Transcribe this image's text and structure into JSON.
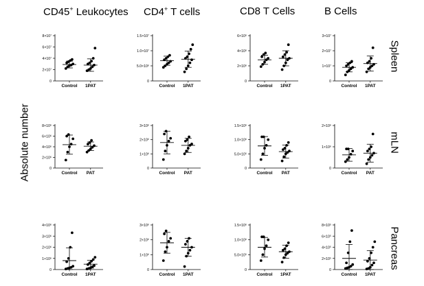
{
  "column_titles": [
    {
      "main": "CD45",
      "sup": "+",
      "rest": " Leukocytes"
    },
    {
      "main": "CD4",
      "sup": "+",
      "rest": " T cells"
    },
    {
      "main": "CD8 T Cells",
      "sup": "",
      "rest": ""
    },
    {
      "main": "B Cells",
      "sup": "",
      "rest": ""
    }
  ],
  "y_axis_label": "Absolute number",
  "row_labels": [
    "Spleen",
    "mLN",
    "Pancreas"
  ],
  "chart_data": [
    {
      "type": "scatter",
      "row": "Spleen",
      "column": "CD45+ Leukocytes",
      "categories": [
        "Control",
        "1PAT"
      ],
      "y_ticks": [
        "0",
        "2×10⁷",
        "4×10⁷",
        "6×10⁷",
        "8×10⁷"
      ],
      "ylim": [
        0,
        80000000
      ],
      "series": [
        {
          "name": "Control",
          "values": [
            22000000,
            25000000,
            27000000,
            28000000,
            30000000,
            32000000,
            34000000,
            36000000,
            38000000
          ],
          "mean": 29000000,
          "sd": 6000000
        },
        {
          "name": "1PAT",
          "values": [
            18000000,
            20000000,
            22000000,
            25000000,
            28000000,
            30000000,
            32000000,
            35000000,
            40000000,
            58000000
          ],
          "mean": 28000000,
          "sd": 11000000
        }
      ]
    },
    {
      "type": "scatter",
      "row": "Spleen",
      "column": "CD4+ T cells",
      "categories": [
        "Control",
        "1PAT"
      ],
      "y_ticks": [
        "0",
        "5.0×10⁶",
        "1.0×10⁷",
        "1.5×10⁷"
      ],
      "ylim": [
        0,
        15000000
      ],
      "series": [
        {
          "name": "Control",
          "values": [
            4500000,
            5000000,
            5500000,
            6000000,
            6500000,
            7000000,
            7500000,
            8000000,
            8500000
          ],
          "mean": 6700000,
          "sd": 1500000
        },
        {
          "name": "1PAT",
          "values": [
            3000000,
            4000000,
            5000000,
            6000000,
            7000000,
            7500000,
            8000000,
            9000000,
            10500000,
            12000000
          ],
          "mean": 7200000,
          "sd": 2700000
        }
      ]
    },
    {
      "type": "scatter",
      "row": "Spleen",
      "column": "CD8 T Cells",
      "categories": [
        "Control",
        "1PAT"
      ],
      "y_ticks": [
        "0",
        "2×10⁶",
        "4×10⁶",
        "6×10⁶"
      ],
      "ylim": [
        0,
        6000000
      ],
      "series": [
        {
          "name": "Control",
          "values": [
            1900000,
            2200000,
            2500000,
            2800000,
            3000000,
            3200000,
            3500000,
            3700000
          ],
          "mean": 2800000,
          "sd": 600000
        },
        {
          "name": "1PAT",
          "values": [
            1500000,
            2000000,
            2400000,
            2800000,
            3000000,
            3200000,
            3500000,
            3800000,
            4800000
          ],
          "mean": 3000000,
          "sd": 1000000
        }
      ]
    },
    {
      "type": "scatter",
      "row": "Spleen",
      "column": "B Cells",
      "categories": [
        "Control",
        "1PAT"
      ],
      "y_ticks": [
        "0",
        "1×10⁷",
        "2×10⁷",
        "3×10⁷"
      ],
      "ylim": [
        0,
        30000000
      ],
      "series": [
        {
          "name": "Control",
          "values": [
            4000000,
            6000000,
            7000000,
            8000000,
            9000000,
            10000000,
            11000000,
            12000000,
            13000000
          ],
          "mean": 9000000,
          "sd": 3000000
        },
        {
          "name": "1PAT",
          "values": [
            6000000,
            8000000,
            9000000,
            10000000,
            11000000,
            12000000,
            13000000,
            15000000,
            22000000
          ],
          "mean": 11500000,
          "sd": 5000000
        }
      ]
    },
    {
      "type": "scatter",
      "row": "mLN",
      "column": "CD45+ Leukocytes",
      "categories": [
        "Control",
        "PAT"
      ],
      "y_ticks": [
        "0",
        "2×10⁶",
        "4×10⁶",
        "6×10⁶",
        "8×10⁶"
      ],
      "ylim": [
        0,
        8000000
      ],
      "series": [
        {
          "name": "Control",
          "values": [
            1500000,
            3000000,
            4000000,
            4500000,
            5500000,
            6000000,
            6300000
          ],
          "mean": 4400000,
          "sd": 1800000
        },
        {
          "name": "PAT",
          "values": [
            3000000,
            3300000,
            3600000,
            3900000,
            4200000,
            4500000,
            4800000,
            5200000
          ],
          "mean": 4100000,
          "sd": 800000
        }
      ]
    },
    {
      "type": "scatter",
      "row": "mLN",
      "column": "CD4+ T cells",
      "categories": [
        "Control",
        "PAT"
      ],
      "y_ticks": [
        "0",
        "1×10⁶",
        "2×10⁶",
        "3×10⁶"
      ],
      "ylim": [
        0,
        3000000
      ],
      "series": [
        {
          "name": "Control",
          "values": [
            600000,
            1200000,
            1600000,
            1900000,
            2100000,
            2400000,
            2600000
          ],
          "mean": 1800000,
          "sd": 800000
        },
        {
          "name": "PAT",
          "values": [
            1000000,
            1200000,
            1400000,
            1600000,
            1700000,
            1900000,
            2000000,
            2200000
          ],
          "mean": 1600000,
          "sd": 500000
        }
      ]
    },
    {
      "type": "scatter",
      "row": "mLN",
      "column": "CD8 T Cells",
      "categories": [
        "Control",
        "PAT"
      ],
      "y_ticks": [
        "0",
        "5.0×10⁵",
        "1.0×10⁶",
        "1.5×10⁶"
      ],
      "ylim": [
        0,
        1500000
      ],
      "series": [
        {
          "name": "Control",
          "values": [
            300000,
            500000,
            700000,
            800000,
            1000000,
            1100000,
            1100000
          ],
          "mean": 780000,
          "sd": 330000
        },
        {
          "name": "PAT",
          "values": [
            250000,
            400000,
            500000,
            550000,
            600000,
            650000,
            700000,
            800000,
            900000
          ],
          "mean": 580000,
          "sd": 230000
        }
      ]
    },
    {
      "type": "scatter",
      "row": "mLN",
      "column": "B Cells",
      "categories": [
        "Control",
        "PAT"
      ],
      "y_ticks": [
        "0",
        "1×10⁶",
        "2×10⁶"
      ],
      "ylim": [
        0,
        2000000
      ],
      "series": [
        {
          "name": "Control",
          "values": [
            300000,
            400000,
            500000,
            650000,
            800000,
            900000,
            900000
          ],
          "mean": 620000,
          "sd": 300000
        },
        {
          "name": "PAT",
          "values": [
            200000,
            400000,
            500000,
            600000,
            700000,
            800000,
            900000,
            1000000,
            1600000
          ],
          "mean": 700000,
          "sd": 420000
        }
      ]
    },
    {
      "type": "scatter",
      "row": "Pancreas",
      "column": "CD45+ Leukocytes",
      "categories": [
        "Control",
        "1PAT"
      ],
      "y_ticks": [
        "0",
        "1×10⁶",
        "2×10⁶",
        "3×10⁶",
        "4×10⁶"
      ],
      "ylim": [
        0,
        4000000
      ],
      "series": [
        {
          "name": "Control",
          "values": [
            50000,
            100000,
            150000,
            200000,
            300000,
            700000,
            1000000,
            2000000,
            3300000
          ],
          "mean": 800000,
          "sd": 1150000
        },
        {
          "name": "1PAT",
          "values": [
            50000,
            100000,
            150000,
            250000,
            350000,
            450000,
            600000,
            750000,
            900000,
            1100000
          ],
          "mean": 480000,
          "sd": 350000
        }
      ]
    },
    {
      "type": "scatter",
      "row": "Pancreas",
      "column": "CD4+ T cells",
      "categories": [
        "Control",
        "1PAT"
      ],
      "y_ticks": [
        "0",
        "1×10⁶",
        "2×10⁶",
        "3×10⁶"
      ],
      "ylim": [
        0,
        3000000
      ],
      "series": [
        {
          "name": "Control",
          "values": [
            600000,
            1200000,
            1500000,
            1900000,
            2100000,
            2400000,
            2600000
          ],
          "mean": 1800000,
          "sd": 700000
        },
        {
          "name": "1PAT",
          "values": [
            200000,
            900000,
            1100000,
            1300000,
            1500000,
            1700000,
            1900000,
            2100000
          ],
          "mean": 1500000,
          "sd": 600000
        }
      ]
    },
    {
      "type": "scatter",
      "row": "Pancreas",
      "column": "CD8 T Cells",
      "categories": [
        "Control",
        "1PAT"
      ],
      "y_ticks": [
        "0",
        "5.0×10⁵",
        "1.0×10⁶",
        "1.5×10⁶"
      ],
      "ylim": [
        0,
        1500000
      ],
      "series": [
        {
          "name": "Control",
          "values": [
            300000,
            500000,
            700000,
            800000,
            1000000,
            1100000,
            1100000
          ],
          "mean": 750000,
          "sd": 330000
        },
        {
          "name": "1PAT",
          "values": [
            250000,
            400000,
            500000,
            550000,
            600000,
            650000,
            700000,
            800000,
            900000
          ],
          "mean": 600000,
          "sd": 220000
        }
      ]
    },
    {
      "type": "scatter",
      "row": "Pancreas",
      "column": "B Cells",
      "categories": [
        "Control",
        "1PAT"
      ],
      "y_ticks": [
        "0",
        "2×10⁵",
        "4×10⁵",
        "6×10⁵",
        "8×10⁵"
      ],
      "ylim": [
        0,
        800000
      ],
      "series": [
        {
          "name": "Control",
          "values": [
            20000,
            30000,
            40000,
            60000,
            90000,
            120000,
            300000,
            500000,
            700000
          ],
          "mean": 200000,
          "sd": 250000
        },
        {
          "name": "1PAT",
          "values": [
            10000,
            20000,
            40000,
            80000,
            120000,
            150000,
            200000,
            300000,
            400000,
            500000
          ],
          "mean": 170000,
          "sd": 170000
        }
      ]
    }
  ]
}
